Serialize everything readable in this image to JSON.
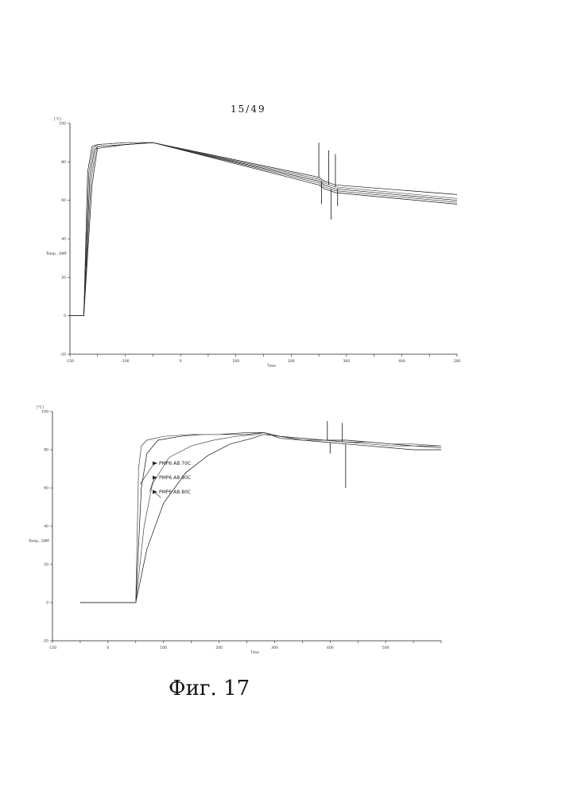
{
  "page": {
    "number": "15/49",
    "caption": "Фиг. 17"
  },
  "chart_data": [
    {
      "type": "line",
      "xlabel": "Time",
      "ylabel": "Temp., DMF",
      "yunit": "[°C]",
      "xlim": [
        -150,
        550
      ],
      "ylim": [
        -20,
        100
      ],
      "x_ticks": [
        -150,
        -100,
        -50,
        0,
        50,
        100,
        150,
        200,
        250,
        300,
        350,
        400,
        450,
        500,
        550
      ],
      "x_tick_labels": [
        "-150",
        "",
        "-100",
        "",
        "0",
        "",
        "100",
        "",
        "200",
        "",
        "300",
        "",
        "400",
        "",
        "500"
      ],
      "y_ticks": [
        -20,
        0,
        20,
        40,
        60,
        80,
        100
      ],
      "x_end_label": "Time",
      "grid": false,
      "series": [
        {
          "x": [
            -150,
            -125,
            -118,
            -110,
            -100,
            -50,
            0,
            300,
            310,
            320,
            330,
            550
          ],
          "y": [
            0,
            0,
            75,
            88,
            89,
            90,
            90,
            72,
            70,
            69,
            68,
            63
          ]
        },
        {
          "x": [
            -150,
            -125,
            -116,
            -108,
            -100,
            -50,
            0,
            300,
            310,
            320,
            330,
            550
          ],
          "y": [
            0,
            0,
            74,
            87,
            89,
            90,
            90,
            71,
            69,
            68,
            67,
            61
          ]
        },
        {
          "x": [
            -150,
            -125,
            -114,
            -106,
            -100,
            -50,
            0,
            300,
            310,
            320,
            330,
            550
          ],
          "y": [
            0,
            0,
            72,
            86,
            88,
            89,
            90,
            70,
            68,
            67,
            66,
            60
          ]
        },
        {
          "x": [
            -150,
            -125,
            -112,
            -104,
            -100,
            -50,
            0,
            300,
            310,
            320,
            330,
            550
          ],
          "y": [
            0,
            0,
            70,
            85,
            88,
            89,
            90,
            69,
            67,
            66,
            65,
            59
          ]
        },
        {
          "x": [
            -150,
            -125,
            -110,
            -102,
            -100,
            -50,
            0,
            300,
            310,
            320,
            330,
            550
          ],
          "y": [
            0,
            0,
            68,
            84,
            87,
            89,
            90,
            68,
            66,
            65,
            64,
            58
          ]
        }
      ]
    },
    {
      "type": "line",
      "xlabel": "Time",
      "ylabel": "Temp., DMF",
      "yunit": "[°C]",
      "xlim": [
        -150,
        550
      ],
      "ylim": [
        -20,
        100
      ],
      "x_ticks": [
        -150,
        -100,
        -50,
        0,
        50,
        100,
        150,
        200,
        250,
        300,
        350,
        400,
        450,
        500,
        550
      ],
      "x_tick_labels": [
        "-150",
        "",
        "0",
        "",
        "100",
        "",
        "200",
        "",
        "300",
        "",
        "400",
        "",
        "500",
        "",
        ""
      ],
      "y_ticks": [
        -20,
        0,
        20,
        40,
        60,
        80,
        100
      ],
      "x_end_label": "Time",
      "grid": false,
      "series": [
        {
          "name": "PMP6 AB 70C",
          "x": [
            -100,
            -5,
            0,
            10,
            20,
            40,
            80,
            120,
            160,
            200,
            230,
            260,
            300,
            340,
            380,
            420,
            460,
            500,
            550
          ],
          "y": [
            0,
            0,
            0,
            60,
            78,
            85,
            87,
            88,
            88,
            88,
            89,
            87,
            86,
            85,
            85,
            84,
            83,
            82,
            82
          ]
        },
        {
          "name": "PMP6 AB 90C",
          "x": [
            -100,
            -5,
            0,
            15,
            30,
            60,
            100,
            140,
            180,
            220,
            230,
            260,
            300,
            340,
            380,
            420,
            460,
            500,
            550
          ],
          "y": [
            0,
            0,
            0,
            40,
            62,
            76,
            82,
            85,
            87,
            88,
            89,
            87,
            86,
            85,
            84,
            83,
            82,
            82,
            81
          ]
        },
        {
          "name": "PMP6 AB 80C",
          "x": [
            -100,
            -5,
            0,
            20,
            50,
            90,
            130,
            170,
            210,
            230,
            260,
            300,
            340,
            380,
            420,
            460,
            500,
            550
          ],
          "y": [
            0,
            0,
            0,
            28,
            52,
            68,
            77,
            83,
            86,
            88,
            87,
            85,
            84,
            83,
            82,
            81,
            80,
            80
          ]
        },
        {
          "x": [
            -100,
            -5,
            0,
            5,
            10,
            20,
            50,
            100,
            150,
            200,
            230,
            260,
            300,
            340,
            380,
            420,
            460,
            500,
            550
          ],
          "y": [
            0,
            0,
            0,
            70,
            82,
            85,
            87,
            88,
            88,
            89,
            89,
            86,
            85,
            85,
            84,
            84,
            83,
            83,
            82
          ]
        }
      ],
      "annotations": [
        "PMP6 AB 70C",
        "PMP6 AB 90C",
        "PMP6 AB 80C"
      ]
    }
  ]
}
